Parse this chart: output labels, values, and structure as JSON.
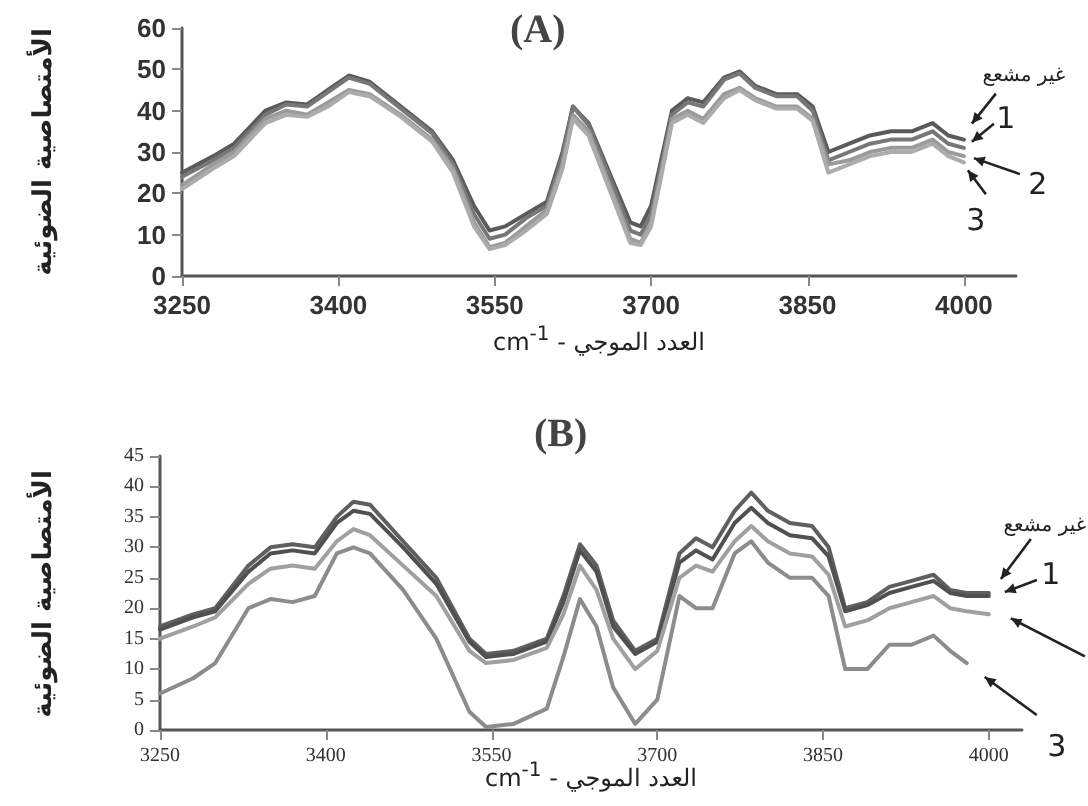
{
  "chart_data": [
    {
      "type": "line",
      "title": "(A)",
      "xlabel": "العدد الموجي - cm$^{-1}$",
      "ylabel": "الأمتصاصية الضوئية",
      "marker": "none",
      "line_style": "solid",
      "grid": false,
      "xlim": [
        3250,
        4050
      ],
      "xticks": [
        3250,
        3400,
        3550,
        3700,
        3850,
        4000
      ],
      "ylim": [
        0,
        60
      ],
      "yticks": [
        0,
        10,
        20,
        30,
        40,
        50,
        60
      ],
      "x": [
        3250,
        3280,
        3300,
        3330,
        3350,
        3370,
        3390,
        3410,
        3430,
        3460,
        3490,
        3510,
        3530,
        3545,
        3560,
        3580,
        3600,
        3615,
        3625,
        3640,
        3660,
        3680,
        3690,
        3700,
        3720,
        3735,
        3750,
        3770,
        3785,
        3800,
        3820,
        3840,
        3855,
        3870,
        3890,
        3910,
        3930,
        3950,
        3970,
        3985,
        4000
      ],
      "series": [
        {
          "name": "غير مشعع",
          "color": "#5a5a5a",
          "values": [
            25,
            29,
            32,
            40,
            42,
            41.5,
            45,
            48.5,
            47,
            41,
            35,
            28,
            17,
            11,
            12,
            15,
            18,
            30,
            41,
            37,
            25,
            13,
            12,
            17,
            40,
            43,
            42,
            48,
            49.5,
            46,
            44,
            44,
            41,
            30,
            32,
            34,
            35,
            35,
            37,
            34,
            33
          ]
        },
        {
          "name": "1",
          "color": "#777777",
          "values": [
            24,
            28,
            31,
            39,
            41.5,
            41,
            44.5,
            48,
            46.5,
            40.5,
            34.5,
            27,
            15,
            9,
            10,
            14,
            17,
            29,
            41,
            36.5,
            24,
            11,
            10,
            15,
            39,
            42,
            41,
            47.5,
            49,
            45.5,
            43.5,
            43.5,
            40,
            28,
            30,
            32,
            33,
            33,
            35,
            32,
            31
          ]
        },
        {
          "name": "2",
          "color": "#9a9a9a",
          "values": [
            22,
            27,
            30,
            38,
            40,
            39,
            42,
            45,
            44,
            39,
            33,
            26,
            13,
            7,
            8,
            12,
            16,
            27,
            39,
            35,
            22,
            9,
            8,
            13,
            38,
            40,
            38,
            44,
            45.5,
            43,
            41,
            41,
            38,
            27,
            28,
            30,
            31,
            31,
            33,
            30,
            29
          ]
        },
        {
          "name": "3",
          "color": "#ababab",
          "values": [
            21,
            26,
            29,
            37,
            39,
            38.5,
            41,
            44.5,
            43.5,
            38.5,
            32.5,
            25,
            12,
            6.5,
            7.5,
            11,
            15,
            26,
            38,
            34,
            21,
            8,
            7.5,
            12,
            37,
            39,
            37,
            43,
            45,
            42.5,
            40.5,
            40.5,
            37.5,
            25,
            27,
            29,
            30,
            30,
            32,
            29,
            27.5
          ]
        }
      ]
    },
    {
      "type": "line",
      "title": "(B)",
      "xlabel": "العدد الموجي - cm$^{-1}$",
      "ylabel": "الأمتصاصية الضوئية",
      "marker": "none",
      "line_style": "solid",
      "grid": false,
      "xlim": [
        3250,
        4030
      ],
      "xticks": [
        3250,
        3400,
        3550,
        3700,
        3850,
        4000
      ],
      "ylim": [
        0,
        45
      ],
      "yticks": [
        0,
        5,
        10,
        15,
        20,
        25,
        30,
        35,
        40,
        45
      ],
      "x": [
        3250,
        3280,
        3300,
        3330,
        3350,
        3370,
        3390,
        3410,
        3425,
        3440,
        3470,
        3500,
        3530,
        3545,
        3570,
        3600,
        3615,
        3630,
        3645,
        3660,
        3680,
        3700,
        3720,
        3735,
        3750,
        3770,
        3785,
        3800,
        3820,
        3840,
        3855,
        3870,
        3890,
        3910,
        3930,
        3950,
        3965,
        3980,
        4000
      ],
      "series": [
        {
          "name": "غير مشعع",
          "color": "#5f5f5f",
          "values": [
            17,
            19,
            20,
            27,
            30,
            30.5,
            30,
            35,
            37.5,
            37,
            31,
            25,
            15,
            12.5,
            13,
            15,
            22,
            30.5,
            27,
            18,
            13,
            15,
            29,
            31.5,
            30,
            36,
            39,
            36,
            34,
            33.5,
            30,
            20,
            21,
            23.5,
            24.5,
            25.5,
            23,
            22.5,
            22.5
          ]
        },
        {
          "name": "1",
          "color": "#505050",
          "values": [
            16.5,
            18.5,
            19.5,
            26,
            29,
            29.5,
            29,
            34,
            36,
            35.5,
            30,
            24,
            14.5,
            12,
            12.5,
            14.5,
            21,
            29.5,
            26,
            17,
            12.5,
            14.5,
            27.5,
            29.5,
            28,
            34,
            36.5,
            34,
            32,
            31.5,
            28.5,
            19.5,
            20.5,
            22.5,
            23.5,
            24.5,
            22.5,
            22,
            22
          ]
        },
        {
          "color": "#a0a0a0",
          "values": [
            15,
            17,
            18.5,
            24,
            26.5,
            27,
            26.5,
            31,
            33,
            32,
            27,
            22,
            13,
            11,
            11.5,
            13.5,
            19,
            27,
            23,
            15,
            10,
            13,
            25,
            27,
            26,
            31,
            33.5,
            31,
            29,
            28.5,
            25.5,
            17,
            18,
            20,
            21,
            22,
            20,
            19.5,
            19
          ]
        },
        {
          "name": "3",
          "color": "#8c8c8c",
          "values": [
            6,
            8.5,
            11,
            20,
            21.5,
            21,
            22,
            29,
            30,
            29,
            23,
            15,
            3,
            0.5,
            1,
            3.5,
            12,
            21.5,
            17,
            7,
            1,
            5,
            22,
            20,
            20,
            29,
            31,
            27.5,
            25,
            25,
            22,
            10,
            10,
            14,
            14,
            15.5,
            13,
            11,
            null
          ]
        }
      ]
    }
  ]
}
